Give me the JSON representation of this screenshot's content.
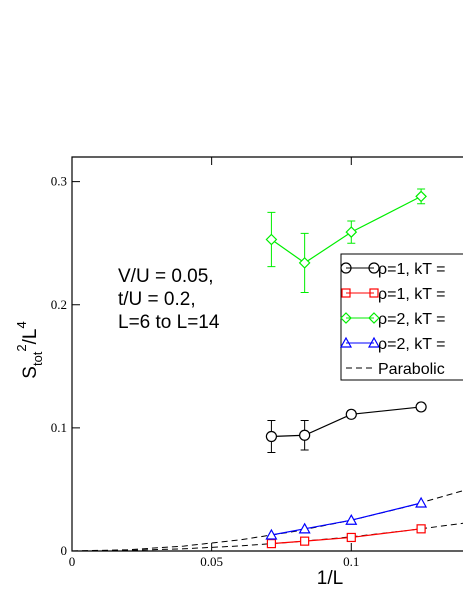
{
  "chart_data": {
    "type": "line",
    "xlabel": "1/L",
    "ylabel": {
      "main": "S",
      "sub": "tot",
      "sup": "2",
      "rest": "/L",
      "sup2": "4"
    },
    "annotation": [
      "V/U = 0.05,",
      "t/U = 0.2,",
      "L=6 to L=14"
    ],
    "xlim": [
      0,
      0.14
    ],
    "ylim": [
      0,
      0.32
    ],
    "xticks": [
      0,
      0.05,
      0.1
    ],
    "yticks": [
      0,
      0.1,
      0.2,
      0.3
    ],
    "x": [
      0.0714,
      0.0833,
      0.1,
      0.125
    ],
    "series": [
      {
        "name": "ρ=1, kT =",
        "color": "#000000",
        "marker": "circle",
        "values": [
          0.093,
          0.094,
          0.111,
          0.117
        ],
        "errors": [
          0.013,
          0.012,
          0.003,
          0.003
        ]
      },
      {
        "name": "ρ=1, kT =",
        "color": "#ff0000",
        "marker": "square",
        "values": [
          0.006,
          0.008,
          0.011,
          0.018
        ]
      },
      {
        "name": "ρ=2, kT =",
        "color": "#00ee00",
        "marker": "diamond",
        "values": [
          0.253,
          0.234,
          0.259,
          0.288
        ],
        "errors": [
          0.022,
          0.024,
          0.009,
          0.006
        ]
      },
      {
        "name": "ρ=2, kT =",
        "color": "#0000ff",
        "marker": "triangle",
        "values": [
          0.013,
          0.018,
          0.025,
          0.039
        ]
      }
    ],
    "fit": {
      "name": "Parabolic",
      "color": "#000000",
      "x": [
        0,
        0.02,
        0.04,
        0.06,
        0.08,
        0.1,
        0.12,
        0.14
      ],
      "curves": [
        [
          0,
          0.001,
          0.004,
          0.009,
          0.016,
          0.025,
          0.036,
          0.049
        ],
        [
          0,
          0.0005,
          0.0018,
          0.0041,
          0.0074,
          0.0115,
          0.0166,
          0.0225
        ]
      ]
    }
  }
}
